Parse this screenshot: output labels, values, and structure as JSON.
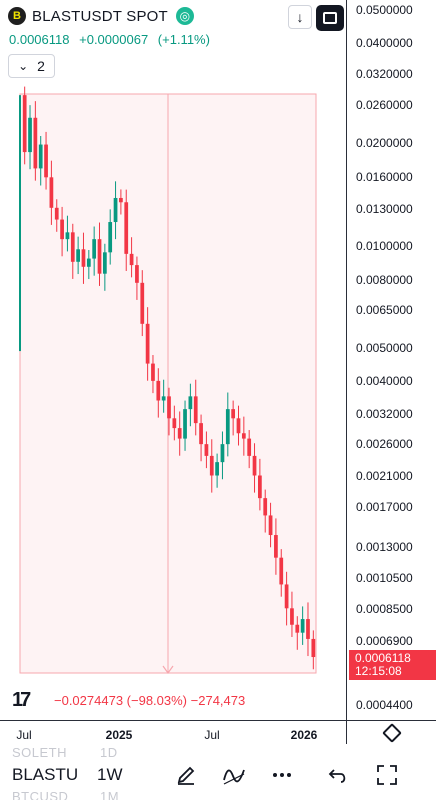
{
  "header": {
    "logo_glyph": "B",
    "symbol": "BLASTUSDT SPOT",
    "exchange_glyph": "◎",
    "price": "0.0006118",
    "change": "+0.0000067",
    "change_pct": "(+1.11%)",
    "interval_count": "2",
    "colors": {
      "up": "#089981",
      "down": "#f23645"
    }
  },
  "price_axis": {
    "ticks": [
      "0.0500000",
      "0.0400000",
      "0.0320000",
      "0.0260000",
      "0.0200000",
      "0.0160000",
      "0.0130000",
      "0.0100000",
      "0.0080000",
      "0.0065000",
      "0.0050000",
      "0.0040000",
      "0.0032000",
      "0.0026000",
      "0.0021000",
      "0.0017000",
      "0.0013000",
      "0.0010500",
      "0.0008500",
      "0.0006900",
      "0.0004400"
    ],
    "current_price": "0.0006118",
    "countdown": "12:15:08"
  },
  "measure": {
    "change": "−0.0274473",
    "pct": "(−98.03%)",
    "ticks": "−274,473"
  },
  "time_axis": {
    "labels": [
      "Jul",
      "2025",
      "Jul",
      "2026"
    ]
  },
  "watchlist_ghost": [
    {
      "symbol": "SOLETH",
      "interval": "1D"
    },
    {
      "symbol": "BTCUSD",
      "interval": "1M"
    }
  ],
  "toolbar": {
    "symbol": "BLASTU",
    "interval": "1W"
  },
  "chart_data": {
    "type": "candlestick",
    "y_scale": "log",
    "ylim": [
      0.00044,
      0.05
    ],
    "x_labels": [
      "Jul",
      "2025",
      "Jul",
      "2026"
    ],
    "legend": "none",
    "grid": false,
    "close_series": [
      0.019,
      0.024,
      0.017,
      0.02,
      0.016,
      0.013,
      0.012,
      0.0105,
      0.011,
      0.009,
      0.0098,
      0.0087,
      0.0092,
      0.0105,
      0.0083,
      0.0096,
      0.0118,
      0.0139,
      0.0135,
      0.0095,
      0.0088,
      0.0078,
      0.0059,
      0.0045,
      0.004,
      0.0035,
      0.0036,
      0.0031,
      0.0029,
      0.0027,
      0.0033,
      0.0036,
      0.003,
      0.0026,
      0.0024,
      0.0021,
      0.0023,
      0.0026,
      0.0033,
      0.0031,
      0.0028,
      0.0027,
      0.0024,
      0.0021,
      0.0018,
      0.0016,
      0.0014,
      0.0012,
      0.001,
      0.00085,
      0.00076,
      0.00072,
      0.00079,
      0.00069,
      0.00061
    ],
    "measure_range": {
      "from": 0.028,
      "to": 0.00061,
      "change": -0.0274473,
      "pct": -98.03
    }
  }
}
